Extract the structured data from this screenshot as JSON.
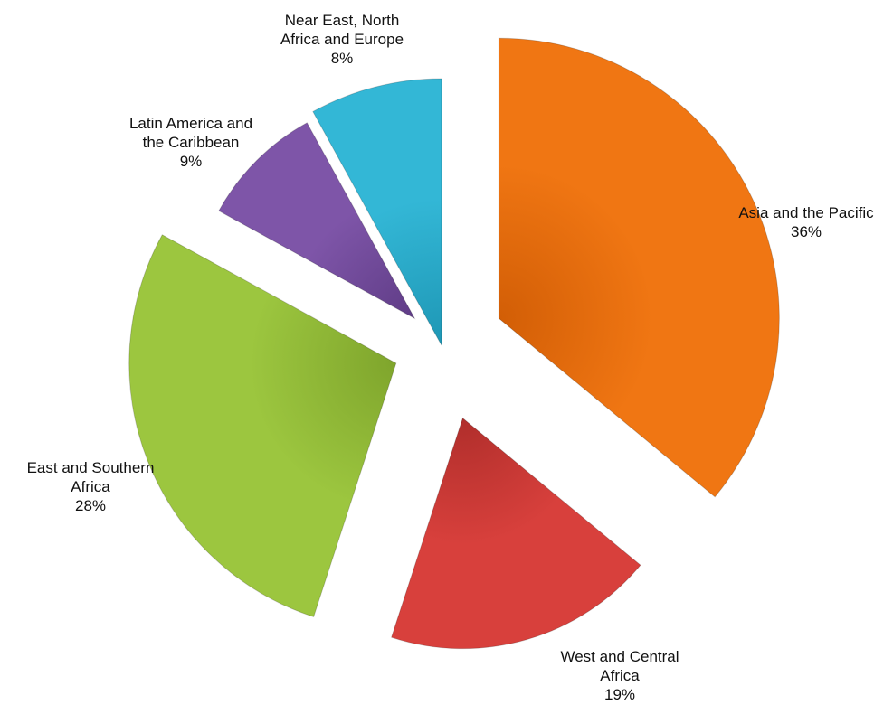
{
  "chart_data": {
    "type": "pie",
    "title": "",
    "exploded": true,
    "legend": "none",
    "slices": [
      {
        "label": "Asia and the Pacific",
        "label_lines": [
          "Asia and the Pacific"
        ],
        "value": 36,
        "value_label": "36%",
        "color": "#F07613",
        "color_dark": "#D25E06"
      },
      {
        "label": "West and Central Africa",
        "label_lines": [
          "West and Central",
          "Africa"
        ],
        "value": 19,
        "value_label": "19%",
        "color": "#D8403C",
        "color_dark": "#B02E2B"
      },
      {
        "label": "East and Southern Africa",
        "label_lines": [
          "East and Southern",
          "Africa"
        ],
        "value": 28,
        "value_label": "28%",
        "color": "#9CC63F",
        "color_dark": "#7FA52C"
      },
      {
        "label": "Latin America and the Caribbean",
        "label_lines": [
          "Latin America and",
          "the Caribbean"
        ],
        "value": 9,
        "value_label": "9%",
        "color": "#7E55A8",
        "color_dark": "#5F3C86"
      },
      {
        "label": "Near East, North Africa and Europe",
        "label_lines": [
          "Near East, North",
          "Africa and Europe"
        ],
        "value": 8,
        "value_label": "8%",
        "color": "#33B7D6",
        "color_dark": "#1E97B5"
      }
    ]
  }
}
